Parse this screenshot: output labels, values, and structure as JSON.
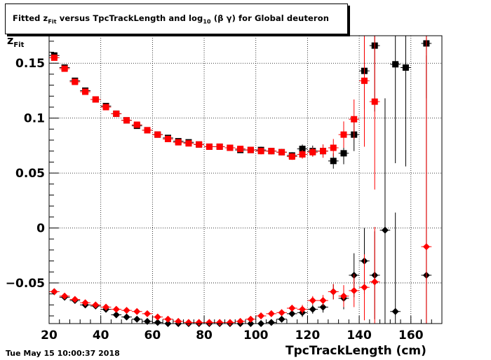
{
  "title": {
    "pre": "Fitted  z",
    "sub1": "Fit",
    "mid": " versus TpcTrackLength and log",
    "sub2": "10",
    "post": " (β γ) for Global deuteron"
  },
  "footer": "Tue May 15 10:00:37 2018",
  "colors": {
    "series_black": "#000000",
    "series_red": "#ff0000",
    "grid": "#000000"
  },
  "chart_data": {
    "type": "scatter",
    "xlabel": "TpcTrackLength (cm)",
    "ylabel": {
      "main": "z",
      "sub": "Fit"
    },
    "xlim": [
      20,
      172
    ],
    "ylim": [
      -0.087,
      0.175
    ],
    "xticks": [
      20,
      40,
      60,
      80,
      100,
      120,
      140,
      160
    ],
    "yticks": [
      -0.05,
      0,
      0.05,
      0.1,
      0.15
    ],
    "ytick_labels": [
      "−0.05",
      "0",
      "0.05",
      "0.1",
      "0.15"
    ],
    "grid": true,
    "series": [
      {
        "marker": "square",
        "color": "#000000",
        "points": [
          {
            "x": 22,
            "y": 0.157,
            "e": 0.002
          },
          {
            "x": 26,
            "y": 0.146,
            "e": 0.002
          },
          {
            "x": 30,
            "y": 0.134,
            "e": 0.002
          },
          {
            "x": 34,
            "y": 0.125,
            "e": 0.002
          },
          {
            "x": 38,
            "y": 0.117,
            "e": 0.002
          },
          {
            "x": 42,
            "y": 0.111,
            "e": 0.002
          },
          {
            "x": 46,
            "y": 0.104,
            "e": 0.002
          },
          {
            "x": 50,
            "y": 0.098,
            "e": 0.002
          },
          {
            "x": 54,
            "y": 0.093,
            "e": 0.002
          },
          {
            "x": 58,
            "y": 0.089,
            "e": 0.002
          },
          {
            "x": 62,
            "y": 0.085,
            "e": 0.002
          },
          {
            "x": 66,
            "y": 0.082,
            "e": 0.002
          },
          {
            "x": 70,
            "y": 0.079,
            "e": 0.002
          },
          {
            "x": 74,
            "y": 0.078,
            "e": 0.002
          },
          {
            "x": 78,
            "y": 0.076,
            "e": 0.002
          },
          {
            "x": 82,
            "y": 0.074,
            "e": 0.002
          },
          {
            "x": 86,
            "y": 0.074,
            "e": 0.002
          },
          {
            "x": 90,
            "y": 0.073,
            "e": 0.002
          },
          {
            "x": 94,
            "y": 0.071,
            "e": 0.002
          },
          {
            "x": 98,
            "y": 0.071,
            "e": 0.002
          },
          {
            "x": 102,
            "y": 0.071,
            "e": 0.003
          },
          {
            "x": 106,
            "y": 0.07,
            "e": 0.003
          },
          {
            "x": 110,
            "y": 0.069,
            "e": 0.003
          },
          {
            "x": 114,
            "y": 0.066,
            "e": 0.003
          },
          {
            "x": 118,
            "y": 0.072,
            "e": 0.004
          },
          {
            "x": 122,
            "y": 0.07,
            "e": 0.005
          },
          {
            "x": 126,
            "y": 0.07,
            "e": 0.006
          },
          {
            "x": 130,
            "y": 0.061,
            "e": 0.007
          },
          {
            "x": 134,
            "y": 0.068,
            "e": 0.01
          },
          {
            "x": 138,
            "y": 0.085,
            "e": 0.015
          },
          {
            "x": 142,
            "y": 0.143,
            "e": 0.035
          },
          {
            "x": 146,
            "y": 0.166,
            "e": 0.06
          },
          {
            "x": 154,
            "y": 0.149,
            "e": 0.09
          },
          {
            "x": 158,
            "y": 0.146,
            "e": 0.09
          },
          {
            "x": 166,
            "y": 0.168,
            "e": 0.05
          }
        ]
      },
      {
        "marker": "square",
        "color": "#ff0000",
        "points": [
          {
            "x": 22,
            "y": 0.155,
            "e": 0.002
          },
          {
            "x": 26,
            "y": 0.145,
            "e": 0.002
          },
          {
            "x": 30,
            "y": 0.133,
            "e": 0.002
          },
          {
            "x": 34,
            "y": 0.124,
            "e": 0.002
          },
          {
            "x": 38,
            "y": 0.117,
            "e": 0.002
          },
          {
            "x": 42,
            "y": 0.11,
            "e": 0.002
          },
          {
            "x": 46,
            "y": 0.104,
            "e": 0.002
          },
          {
            "x": 50,
            "y": 0.098,
            "e": 0.002
          },
          {
            "x": 54,
            "y": 0.094,
            "e": 0.002
          },
          {
            "x": 58,
            "y": 0.089,
            "e": 0.002
          },
          {
            "x": 62,
            "y": 0.085,
            "e": 0.002
          },
          {
            "x": 66,
            "y": 0.081,
            "e": 0.002
          },
          {
            "x": 70,
            "y": 0.078,
            "e": 0.002
          },
          {
            "x": 74,
            "y": 0.077,
            "e": 0.002
          },
          {
            "x": 78,
            "y": 0.076,
            "e": 0.002
          },
          {
            "x": 82,
            "y": 0.074,
            "e": 0.002
          },
          {
            "x": 86,
            "y": 0.074,
            "e": 0.002
          },
          {
            "x": 90,
            "y": 0.073,
            "e": 0.002
          },
          {
            "x": 94,
            "y": 0.072,
            "e": 0.002
          },
          {
            "x": 98,
            "y": 0.071,
            "e": 0.002
          },
          {
            "x": 102,
            "y": 0.07,
            "e": 0.003
          },
          {
            "x": 106,
            "y": 0.07,
            "e": 0.003
          },
          {
            "x": 110,
            "y": 0.069,
            "e": 0.003
          },
          {
            "x": 114,
            "y": 0.065,
            "e": 0.003
          },
          {
            "x": 118,
            "y": 0.067,
            "e": 0.004
          },
          {
            "x": 122,
            "y": 0.069,
            "e": 0.004
          },
          {
            "x": 126,
            "y": 0.07,
            "e": 0.006
          },
          {
            "x": 130,
            "y": 0.073,
            "e": 0.008
          },
          {
            "x": 134,
            "y": 0.085,
            "e": 0.012
          },
          {
            "x": 138,
            "y": 0.099,
            "e": 0.018
          },
          {
            "x": 142,
            "y": 0.134,
            "e": 0.06
          },
          {
            "x": 146,
            "y": 0.115,
            "e": 0.08
          }
        ]
      },
      {
        "marker": "diamond",
        "color": "#000000",
        "points": [
          {
            "x": 22,
            "y": -0.058,
            "e": 0.002
          },
          {
            "x": 26,
            "y": -0.063,
            "e": 0.002
          },
          {
            "x": 30,
            "y": -0.066,
            "e": 0.002
          },
          {
            "x": 34,
            "y": -0.07,
            "e": 0.002
          },
          {
            "x": 38,
            "y": -0.071,
            "e": 0.002
          },
          {
            "x": 42,
            "y": -0.074,
            "e": 0.002
          },
          {
            "x": 46,
            "y": -0.079,
            "e": 0.002
          },
          {
            "x": 50,
            "y": -0.081,
            "e": 0.002
          },
          {
            "x": 54,
            "y": -0.083,
            "e": 0.002
          },
          {
            "x": 58,
            "y": -0.085,
            "e": 0.002
          },
          {
            "x": 62,
            "y": -0.086,
            "e": 0.002
          },
          {
            "x": 66,
            "y": -0.087,
            "e": 0.002
          },
          {
            "x": 70,
            "y": -0.087,
            "e": 0.002
          },
          {
            "x": 74,
            "y": -0.087,
            "e": 0.002
          },
          {
            "x": 78,
            "y": -0.087,
            "e": 0.002
          },
          {
            "x": 82,
            "y": -0.087,
            "e": 0.002
          },
          {
            "x": 86,
            "y": -0.087,
            "e": 0.002
          },
          {
            "x": 90,
            "y": -0.087,
            "e": 0.002
          },
          {
            "x": 94,
            "y": -0.087,
            "e": 0.002
          },
          {
            "x": 98,
            "y": -0.087,
            "e": 0.002
          },
          {
            "x": 102,
            "y": -0.087,
            "e": 0.003
          },
          {
            "x": 106,
            "y": -0.086,
            "e": 0.003
          },
          {
            "x": 110,
            "y": -0.083,
            "e": 0.003
          },
          {
            "x": 114,
            "y": -0.078,
            "e": 0.003
          },
          {
            "x": 118,
            "y": -0.077,
            "e": 0.004
          },
          {
            "x": 122,
            "y": -0.074,
            "e": 0.004
          },
          {
            "x": 126,
            "y": -0.072,
            "e": 0.005
          },
          {
            "x": 130,
            "y": -0.058,
            "e": 0.007
          },
          {
            "x": 134,
            "y": -0.064,
            "e": 0.01
          },
          {
            "x": 138,
            "y": -0.043,
            "e": 0.02
          },
          {
            "x": 142,
            "y": -0.03,
            "e": 0.03
          },
          {
            "x": 146,
            "y": -0.043,
            "e": 0.04
          },
          {
            "x": 150,
            "y": -0.002,
            "e": 0.12
          },
          {
            "x": 154,
            "y": -0.076,
            "e": 0.09
          },
          {
            "x": 166,
            "y": -0.043,
            "e": 0.2
          }
        ]
      },
      {
        "marker": "diamond",
        "color": "#ff0000",
        "points": [
          {
            "x": 22,
            "y": -0.058,
            "e": 0.002
          },
          {
            "x": 26,
            "y": -0.062,
            "e": 0.002
          },
          {
            "x": 30,
            "y": -0.065,
            "e": 0.002
          },
          {
            "x": 34,
            "y": -0.068,
            "e": 0.002
          },
          {
            "x": 38,
            "y": -0.07,
            "e": 0.002
          },
          {
            "x": 42,
            "y": -0.072,
            "e": 0.002
          },
          {
            "x": 46,
            "y": -0.074,
            "e": 0.002
          },
          {
            "x": 50,
            "y": -0.075,
            "e": 0.002
          },
          {
            "x": 54,
            "y": -0.076,
            "e": 0.002
          },
          {
            "x": 58,
            "y": -0.078,
            "e": 0.002
          },
          {
            "x": 62,
            "y": -0.081,
            "e": 0.002
          },
          {
            "x": 66,
            "y": -0.083,
            "e": 0.002
          },
          {
            "x": 70,
            "y": -0.085,
            "e": 0.002
          },
          {
            "x": 74,
            "y": -0.086,
            "e": 0.002
          },
          {
            "x": 78,
            "y": -0.086,
            "e": 0.002
          },
          {
            "x": 82,
            "y": -0.086,
            "e": 0.002
          },
          {
            "x": 86,
            "y": -0.086,
            "e": 0.002
          },
          {
            "x": 90,
            "y": -0.086,
            "e": 0.002
          },
          {
            "x": 94,
            "y": -0.085,
            "e": 0.002
          },
          {
            "x": 98,
            "y": -0.083,
            "e": 0.002
          },
          {
            "x": 102,
            "y": -0.08,
            "e": 0.003
          },
          {
            "x": 106,
            "y": -0.078,
            "e": 0.003
          },
          {
            "x": 110,
            "y": -0.077,
            "e": 0.003
          },
          {
            "x": 114,
            "y": -0.073,
            "e": 0.003
          },
          {
            "x": 118,
            "y": -0.074,
            "e": 0.004
          },
          {
            "x": 122,
            "y": -0.066,
            "e": 0.004
          },
          {
            "x": 126,
            "y": -0.066,
            "e": 0.005
          },
          {
            "x": 130,
            "y": -0.058,
            "e": 0.007
          },
          {
            "x": 134,
            "y": -0.062,
            "e": 0.01
          },
          {
            "x": 138,
            "y": -0.057,
            "e": 0.015
          },
          {
            "x": 142,
            "y": -0.054,
            "e": 0.03
          },
          {
            "x": 146,
            "y": -0.049,
            "e": 0.05
          },
          {
            "x": 166,
            "y": -0.017,
            "e": 0.2
          }
        ]
      }
    ]
  }
}
